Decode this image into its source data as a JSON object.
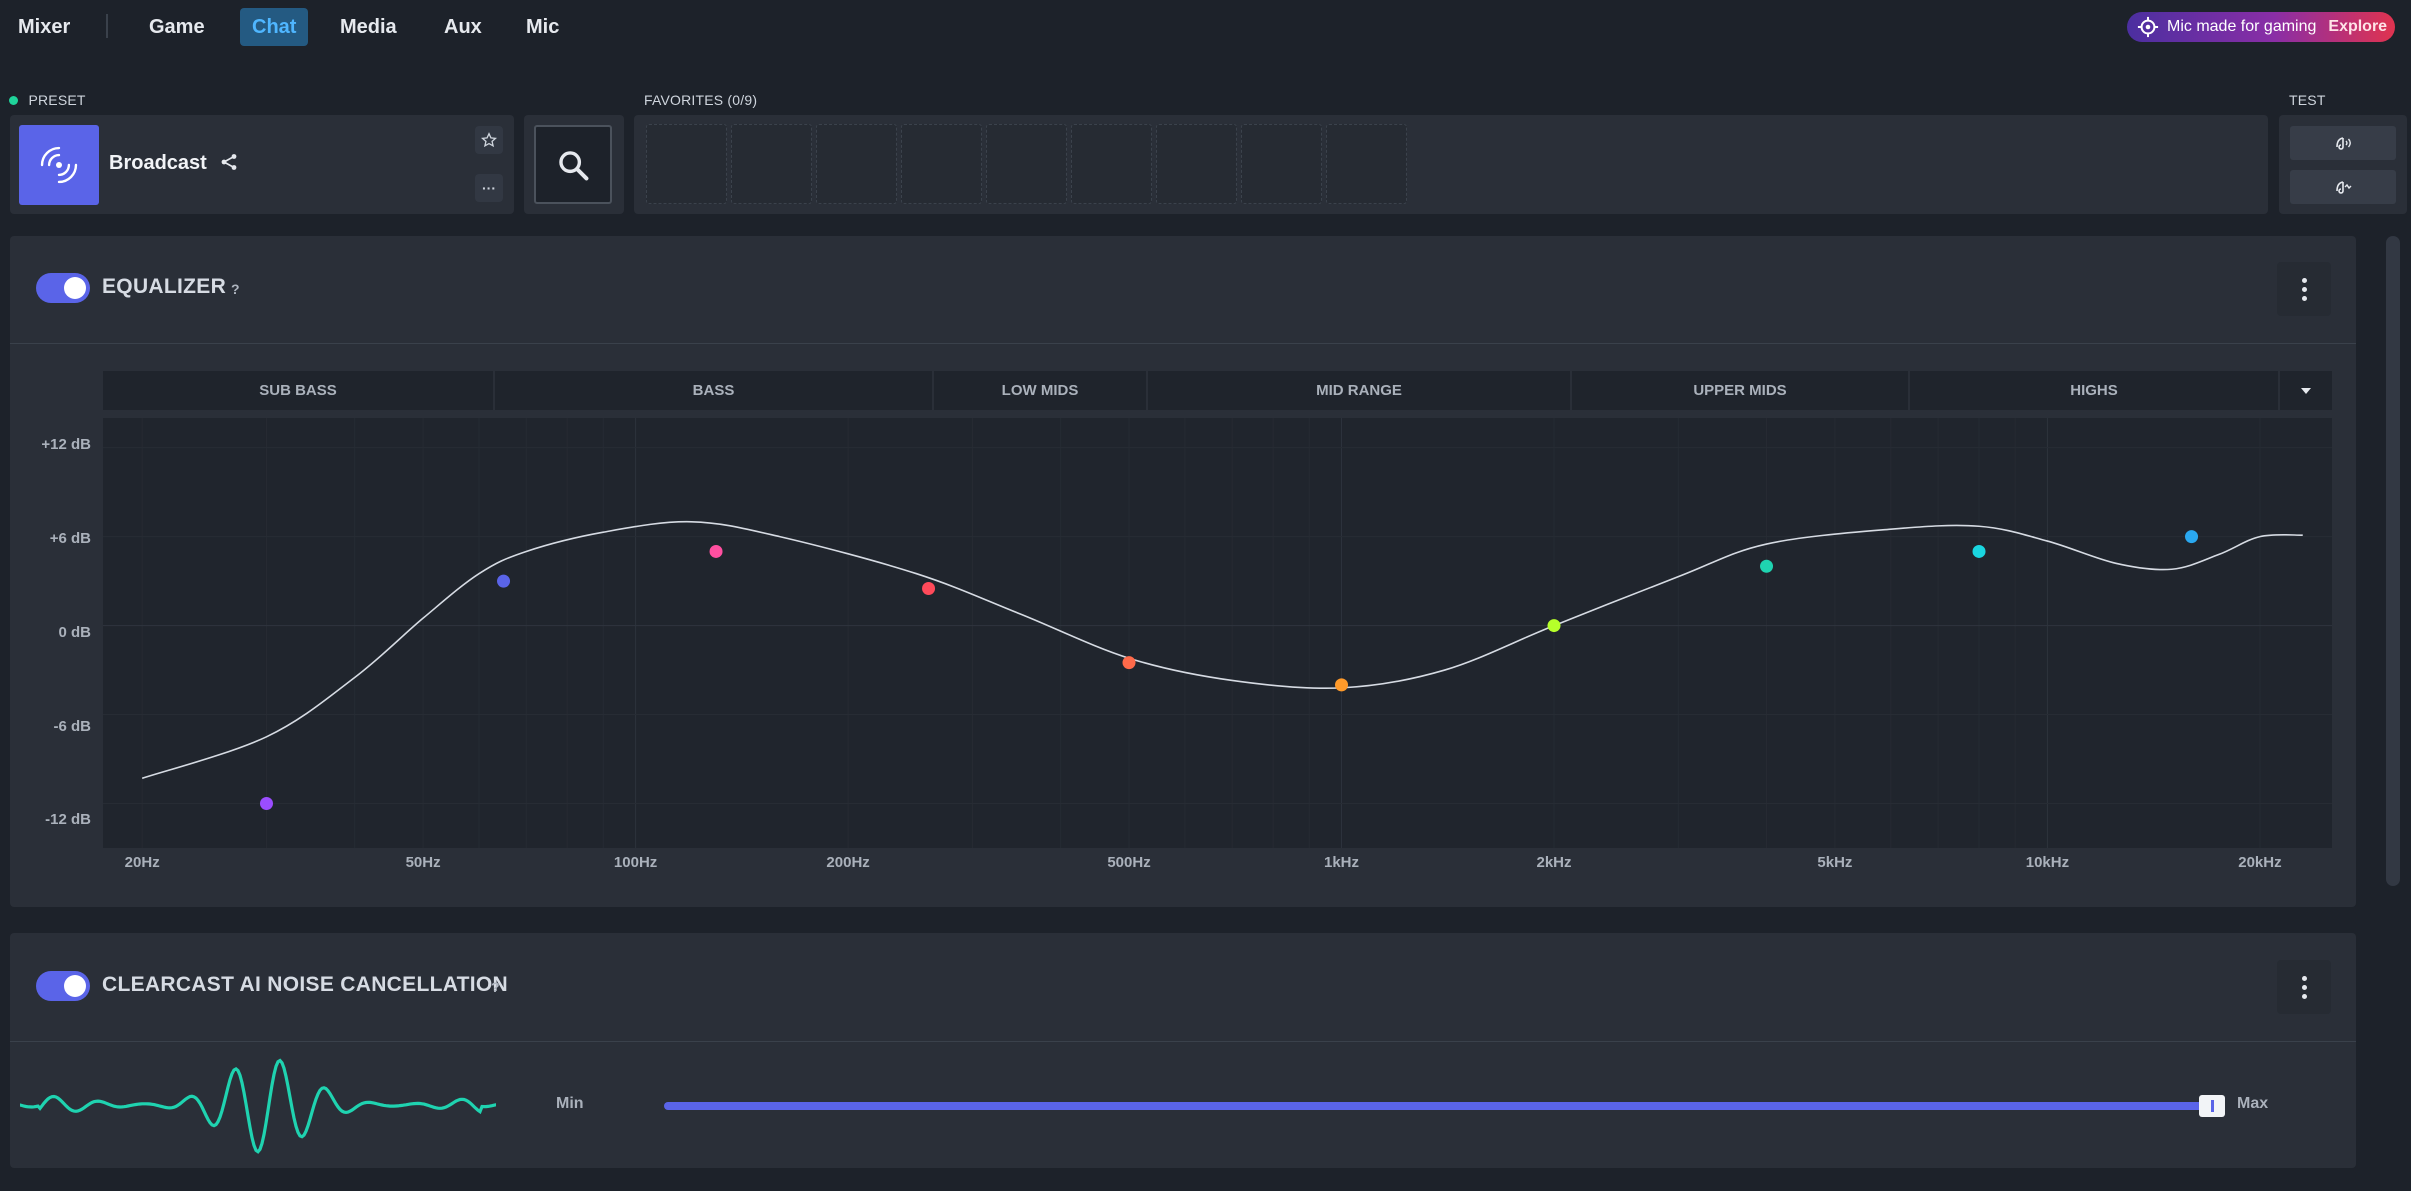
{
  "nav": {
    "tabs": [
      "Mixer",
      "Game",
      "Chat",
      "Media",
      "Aux",
      "Mic"
    ],
    "active": "Chat",
    "promo_text": "Mic made for gaming",
    "promo_link": "Explore"
  },
  "preset": {
    "section_label": "PRESET",
    "name": "Broadcast",
    "more_label": "···"
  },
  "favorites": {
    "section_label": "FAVORITES (0/9)",
    "slots": 9
  },
  "test": {
    "section_label": "TEST"
  },
  "equalizer": {
    "title": "EQUALIZER",
    "help": "?",
    "enabled": true,
    "bands": [
      "SUB BASS",
      "BASS",
      "LOW MIDS",
      "MID RANGE",
      "UPPER MIDS",
      "HIGHS"
    ],
    "y_ticks": [
      "+12 dB",
      "+6 dB",
      "0 dB",
      "-6 dB",
      "-12 dB"
    ],
    "x_ticks": [
      "20Hz",
      "50Hz",
      "100Hz",
      "200Hz",
      "500Hz",
      "1kHz",
      "2kHz",
      "5kHz",
      "10kHz",
      "20kHz"
    ],
    "points": [
      {
        "freq_hz": 30,
        "gain_db": -12,
        "color": "#9b4dff"
      },
      {
        "freq_hz": 65,
        "gain_db": 3,
        "color": "#5a64e8"
      },
      {
        "freq_hz": 130,
        "gain_db": 5,
        "color": "#ff4fa0"
      },
      {
        "freq_hz": 260,
        "gain_db": 2.5,
        "color": "#ff4a5a"
      },
      {
        "freq_hz": 500,
        "gain_db": -2.5,
        "color": "#ff6a4a"
      },
      {
        "freq_hz": 1000,
        "gain_db": -4,
        "color": "#ff9a2a"
      },
      {
        "freq_hz": 2000,
        "gain_db": 0,
        "color": "#b6ff2a"
      },
      {
        "freq_hz": 4000,
        "gain_db": 4,
        "color": "#1fd3b0"
      },
      {
        "freq_hz": 8000,
        "gain_db": 5,
        "color": "#1ad6e0"
      },
      {
        "freq_hz": 16000,
        "gain_db": 6,
        "color": "#2aa8f0"
      }
    ],
    "curve": [
      [
        20,
        -10.3
      ],
      [
        30,
        -7.5
      ],
      [
        40,
        -3.5
      ],
      [
        50,
        0.5
      ],
      [
        60,
        3.5
      ],
      [
        70,
        5.0
      ],
      [
        90,
        6.3
      ],
      [
        120,
        7.0
      ],
      [
        160,
        6.0
      ],
      [
        250,
        3.5
      ],
      [
        350,
        0.8
      ],
      [
        500,
        -2.2
      ],
      [
        700,
        -3.7
      ],
      [
        1000,
        -4.2
      ],
      [
        1400,
        -3.0
      ],
      [
        2000,
        0.0
      ],
      [
        3000,
        3.3
      ],
      [
        4000,
        5.5
      ],
      [
        6000,
        6.5
      ],
      [
        8000,
        6.7
      ],
      [
        10000,
        5.7
      ],
      [
        12500,
        4.2
      ],
      [
        15000,
        3.8
      ],
      [
        17500,
        4.8
      ],
      [
        20000,
        6.0
      ],
      [
        23000,
        6.1
      ]
    ]
  },
  "noise": {
    "title": "CLEARCAST AI NOISE CANCELLATION",
    "help": "?",
    "enabled": true,
    "min_label": "Min",
    "max_label": "Max",
    "level": 1.0
  }
}
